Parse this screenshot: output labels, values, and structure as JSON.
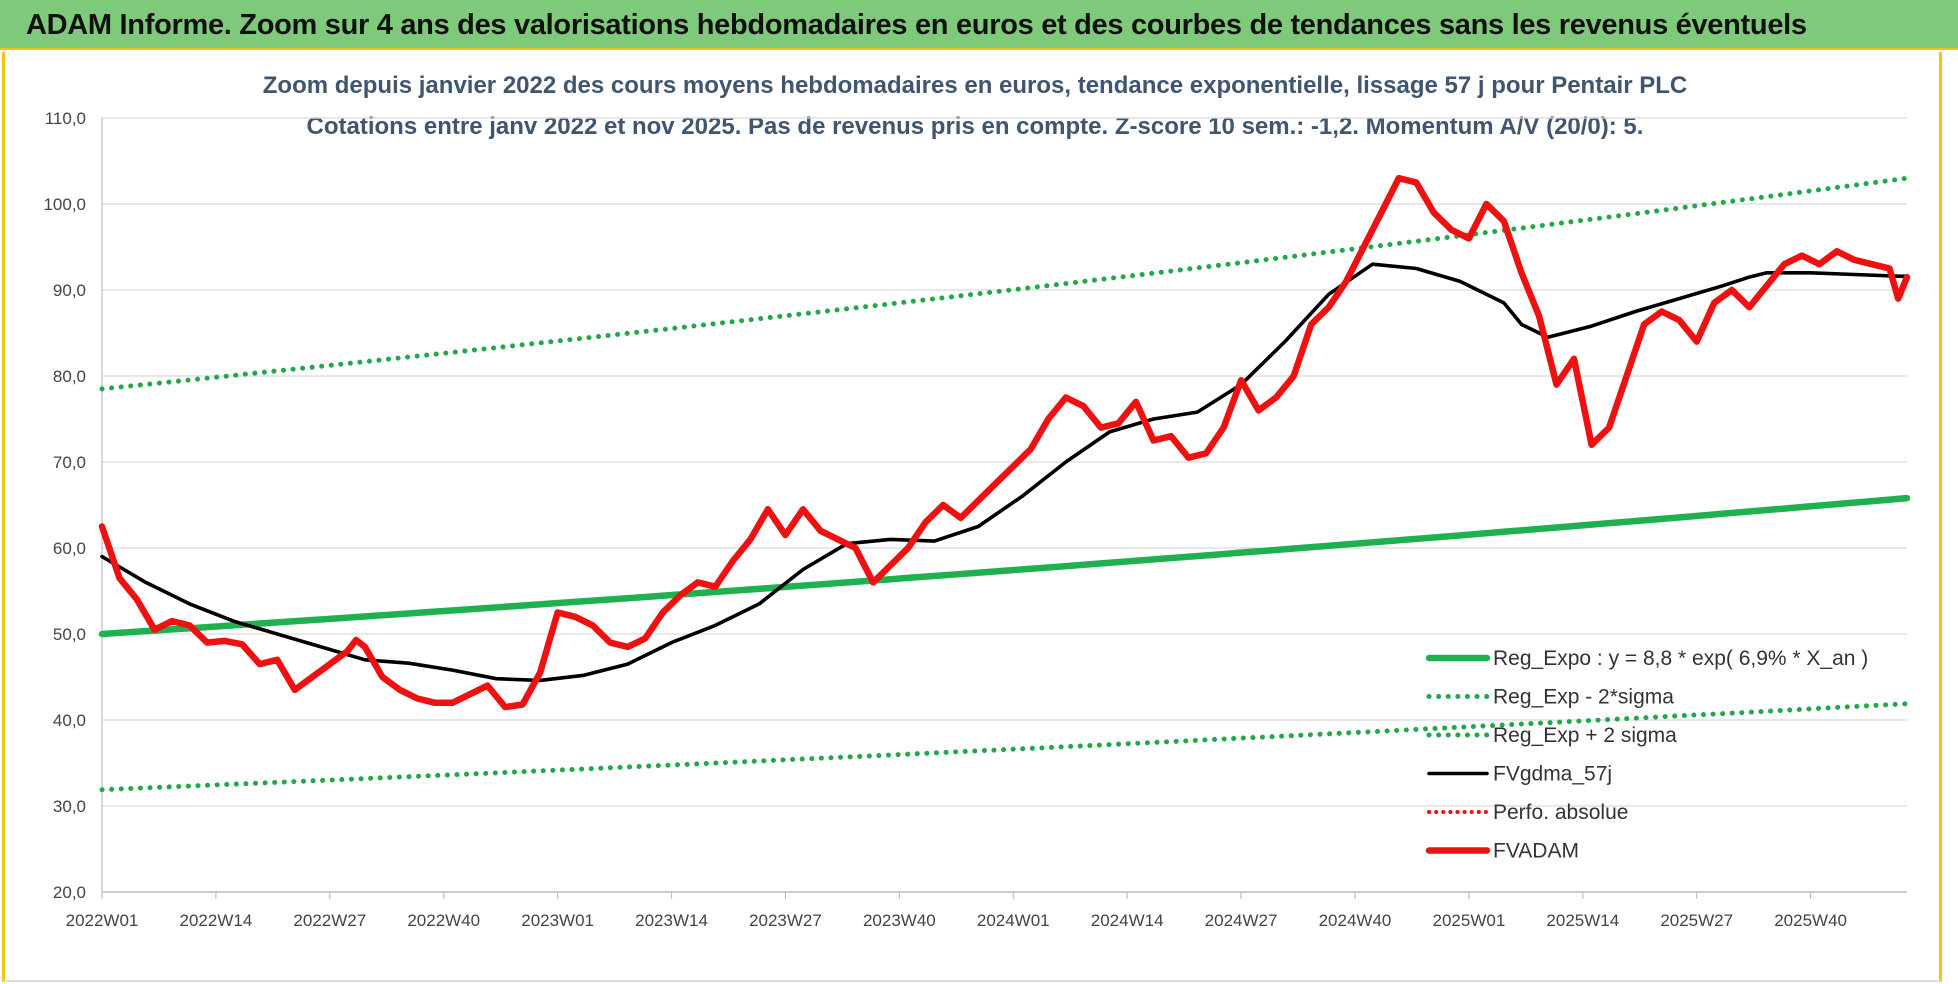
{
  "page_title": "ADAM Informe. Zoom sur 4 ans des valorisations hebdomadaires en euros et des courbes de tendances sans les revenus éventuels",
  "colors": {
    "title_bar": "#7fc97a",
    "frame_border": "#f1c40f",
    "green": "#1fb150",
    "green_dots": "#22a84b",
    "black": "#000000",
    "red": "#ee1111",
    "grid": "#d9d9d9"
  },
  "chart_data": {
    "type": "line",
    "title": "Zoom depuis janvier 2022 des cours moyens hebdomadaires en euros, tendance exponentielle, lissage 57 j pour Pentair PLC",
    "subtitle": "Cotations entre janv 2022 et nov 2025. Pas de revenus pris en compte. Z-score 10 sem.: -1,2. Momentum A/V (20/0): 5.",
    "x_ticks": [
      "2022W01",
      "2022W14",
      "2022W27",
      "2022W40",
      "2023W01",
      "2023W14",
      "2023W27",
      "2023W40",
      "2024W01",
      "2024W14",
      "2024W27",
      "2024W40",
      "2025W01",
      "2025W14",
      "2025W27",
      "2025W40"
    ],
    "x_range": [
      0,
      206
    ],
    "x_tick_step": 13,
    "ylim": [
      20,
      110
    ],
    "y_ticks": [
      "20,0",
      "30,0",
      "40,0",
      "50,0",
      "60,0",
      "70,0",
      "80,0",
      "90,0",
      "100,0",
      "110,0"
    ],
    "grid": "horizontal",
    "legend_position": "right-bottom",
    "series": [
      {
        "name": "Reg_Expo : y = 8,8 * exp( 6,9% *  X_an )",
        "style": "solid-green",
        "x": [
          0,
          206
        ],
        "y": [
          50.0,
          65.8
        ]
      },
      {
        "name": "Reg_Exp - 2*sigma",
        "style": "dotted-green",
        "x": [
          0,
          206
        ],
        "y": [
          31.9,
          41.9
        ]
      },
      {
        "name": "Reg_Exp + 2 sigma",
        "style": "dotted-green",
        "x": [
          0,
          206
        ],
        "y": [
          78.5,
          103.0
        ]
      },
      {
        "name": "FVgdma_57j",
        "style": "solid-black",
        "x": [
          0,
          5,
          10,
          15,
          20,
          25,
          30,
          35,
          40,
          45,
          50,
          55,
          60,
          65,
          70,
          75,
          80,
          85,
          90,
          95,
          100,
          105,
          110,
          115,
          120,
          125,
          130,
          135,
          140,
          145,
          150,
          155,
          160,
          162,
          165,
          170,
          175,
          180,
          185,
          188,
          190,
          195,
          200,
          205,
          206
        ],
        "y": [
          59.0,
          56.0,
          53.5,
          51.5,
          50.0,
          48.5,
          47.0,
          46.6,
          45.8,
          44.8,
          44.6,
          45.2,
          46.5,
          49.0,
          51.0,
          53.5,
          57.5,
          60.5,
          61.0,
          60.8,
          62.5,
          66.0,
          70.0,
          73.5,
          75.0,
          75.8,
          79.0,
          84.0,
          89.5,
          93.0,
          92.5,
          91.0,
          88.5,
          86.0,
          84.5,
          85.8,
          87.5,
          89.0,
          90.5,
          91.5,
          92.0,
          92.0,
          91.8,
          91.6,
          91.6
        ]
      },
      {
        "name": "Perfo. absolue",
        "style": "dotted-red",
        "x": [],
        "y": []
      },
      {
        "name": "FVADAM",
        "style": "solid-red",
        "x": [
          0,
          2,
          4,
          6,
          8,
          10,
          12,
          14,
          16,
          18,
          20,
          22,
          24,
          26,
          28,
          29,
          30,
          32,
          34,
          36,
          38,
          40,
          42,
          44,
          46,
          48,
          50,
          52,
          54,
          56,
          58,
          60,
          62,
          64,
          66,
          68,
          70,
          72,
          74,
          76,
          78,
          80,
          82,
          84,
          86,
          88,
          90,
          92,
          94,
          95,
          96,
          98,
          100,
          102,
          104,
          106,
          108,
          110,
          112,
          114,
          116,
          118,
          120,
          122,
          124,
          126,
          128,
          130,
          132,
          134,
          136,
          138,
          140,
          142,
          144,
          146,
          148,
          150,
          152,
          154,
          156,
          158,
          160,
          162,
          164,
          165,
          166,
          168,
          170,
          172,
          174,
          176,
          178,
          180,
          182,
          184,
          186,
          188,
          190,
          192,
          194,
          196,
          198,
          200,
          202,
          204,
          205,
          206
        ],
        "y": [
          62.5,
          56.5,
          54.0,
          50.5,
          51.5,
          51.0,
          49.0,
          49.2,
          48.8,
          46.5,
          47.0,
          43.5,
          45.0,
          46.5,
          48.0,
          49.3,
          48.5,
          45.0,
          43.5,
          42.5,
          42.0,
          42.0,
          43.0,
          44.0,
          41.5,
          41.8,
          45.5,
          52.5,
          52.0,
          51.0,
          49.0,
          48.5,
          49.5,
          52.5,
          54.5,
          56.0,
          55.5,
          58.5,
          61.0,
          64.5,
          61.5,
          64.5,
          62.0,
          61.0,
          60.0,
          56.0,
          58.0,
          60.0,
          63.0,
          64.0,
          65.0,
          63.5,
          65.5,
          67.5,
          69.5,
          71.5,
          75.0,
          77.5,
          76.5,
          74.0,
          74.5,
          77.0,
          72.5,
          73.0,
          70.5,
          71.0,
          74.0,
          79.5,
          76.0,
          77.5,
          80.0,
          86.0,
          88.0,
          91.0,
          95.0,
          99.0,
          103.0,
          102.5,
          99.0,
          97.0,
          96.0,
          100.0,
          98.0,
          92.0,
          87.0,
          83.0,
          79.0,
          82.0,
          72.0,
          74.0,
          80.0,
          86.0,
          87.5,
          86.5,
          84.0,
          88.5,
          90.0,
          88.0,
          90.5,
          93.0,
          94.0,
          93.0,
          94.5,
          93.5,
          93.0,
          92.5,
          89.0,
          91.5
        ]
      }
    ]
  },
  "legend": [
    {
      "label": "Reg_Expo : y = 8,8 * exp( 6,9% *  X_an )",
      "style": "solid-green"
    },
    {
      "label": "Reg_Exp - 2*sigma",
      "style": "dotted-green"
    },
    {
      "label": "Reg_Exp + 2 sigma",
      "style": "dotted-green"
    },
    {
      "label": "FVgdma_57j",
      "style": "solid-black"
    },
    {
      "label": "Perfo. absolue",
      "style": "dotted-red"
    },
    {
      "label": "FVADAM",
      "style": "solid-red"
    }
  ]
}
